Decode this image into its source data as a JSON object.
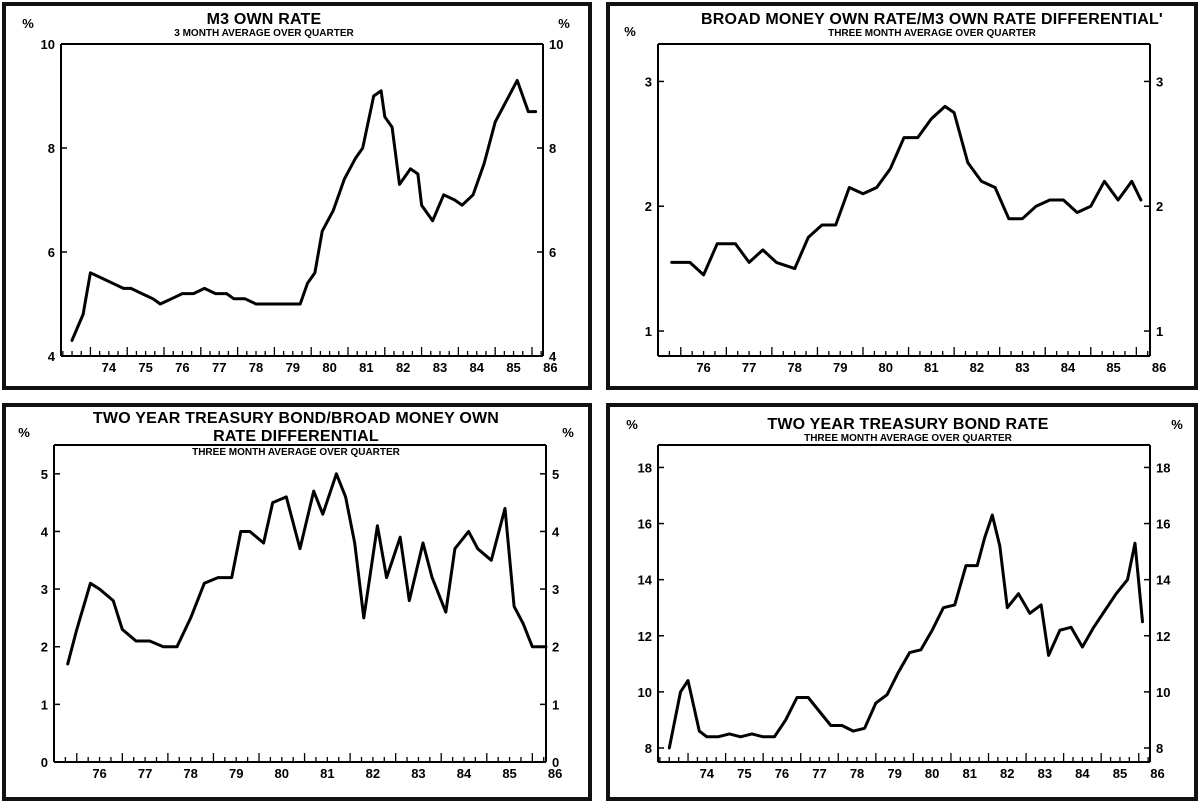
{
  "chart_data": [
    {
      "type": "line",
      "title": "M3 OWN RATE",
      "subtitle": "3 MONTH AVERAGE OVER QUARTER",
      "unit_left": "%",
      "unit_right": "%",
      "xlabel": "",
      "ylabel": "",
      "x_ticks": [
        "74",
        "75",
        "76",
        "77",
        "78",
        "79",
        "80",
        "81",
        "82",
        "83",
        "84",
        "85",
        "86"
      ],
      "ylim": [
        4,
        10
      ],
      "y_ticks": [
        "4",
        "6",
        "8",
        "10"
      ],
      "grid": false,
      "series": [
        {
          "x": [
            73.5,
            73.8,
            74.0,
            74.3,
            74.6,
            74.9,
            75.1,
            75.4,
            75.7,
            75.9,
            76.2,
            76.5,
            76.8,
            77.1,
            77.4,
            77.7,
            77.9,
            78.2,
            78.5,
            78.8,
            79.1,
            79.4,
            79.7,
            79.9,
            80.1,
            80.3,
            80.6,
            80.9,
            81.2,
            81.4,
            81.7,
            81.9,
            82.0,
            82.2,
            82.4,
            82.7,
            82.9,
            83.0,
            83.3,
            83.6,
            83.9,
            84.1,
            84.4,
            84.7,
            85.0,
            85.3,
            85.6,
            85.9,
            86.1
          ],
          "values": [
            4.3,
            4.8,
            5.6,
            5.5,
            5.4,
            5.3,
            5.3,
            5.2,
            5.1,
            5.0,
            5.1,
            5.2,
            5.2,
            5.3,
            5.2,
            5.2,
            5.1,
            5.1,
            5.0,
            5.0,
            5.0,
            5.0,
            5.0,
            5.4,
            5.6,
            6.4,
            6.8,
            7.4,
            7.8,
            8.0,
            9.0,
            9.1,
            8.6,
            8.4,
            7.3,
            7.6,
            7.5,
            6.9,
            6.6,
            7.1,
            7.0,
            6.9,
            7.1,
            7.7,
            8.5,
            8.9,
            9.3,
            8.7,
            8.7
          ]
        }
      ]
    },
    {
      "type": "line",
      "title": "BROAD MONEY OWN RATE/M3 OWN RATE DIFFERENTIAL'",
      "subtitle": "THREE MONTH AVERAGE OVER QUARTER",
      "unit_left": "%",
      "unit_right": "",
      "xlabel": "",
      "ylabel": "",
      "x_ticks": [
        "76",
        "77",
        "78",
        "79",
        "80",
        "81",
        "82",
        "83",
        "84",
        "85",
        "86"
      ],
      "ylim": [
        0.8,
        3.3
      ],
      "y_ticks": [
        "1",
        "2",
        "3"
      ],
      "grid": false,
      "series": [
        {
          "x": [
            75.8,
            76.2,
            76.5,
            76.8,
            77.2,
            77.5,
            77.8,
            78.1,
            78.5,
            78.8,
            79.1,
            79.4,
            79.7,
            80.0,
            80.3,
            80.6,
            80.9,
            81.2,
            81.5,
            81.8,
            82.0,
            82.3,
            82.6,
            82.9,
            83.2,
            83.5,
            83.8,
            84.1,
            84.4,
            84.7,
            85.0,
            85.3,
            85.6,
            85.9,
            86.1
          ],
          "values": [
            1.55,
            1.55,
            1.45,
            1.7,
            1.7,
            1.55,
            1.65,
            1.55,
            1.5,
            1.75,
            1.85,
            1.85,
            2.15,
            2.1,
            2.15,
            2.3,
            2.55,
            2.55,
            2.7,
            2.8,
            2.75,
            2.35,
            2.2,
            2.15,
            1.9,
            1.9,
            2.0,
            2.05,
            2.05,
            1.95,
            2.0,
            2.2,
            2.05,
            2.2,
            2.05
          ]
        }
      ]
    },
    {
      "type": "line",
      "title": "TWO YEAR TREASURY BOND/BROAD MONEY OWN RATE DIFFERENTIAL",
      "subtitle": "THREE MONTH AVERAGE OVER QUARTER",
      "unit_left": "%",
      "unit_right": "%",
      "xlabel": "",
      "ylabel": "",
      "x_ticks": [
        "76",
        "77",
        "78",
        "79",
        "80",
        "81",
        "82",
        "83",
        "84",
        "85",
        "86"
      ],
      "ylim": [
        0,
        5.5
      ],
      "y_ticks": [
        "0",
        "1",
        "2",
        "3",
        "4",
        "5"
      ],
      "grid": false,
      "series": [
        {
          "x": [
            75.8,
            76.0,
            76.3,
            76.5,
            76.8,
            77.0,
            77.3,
            77.6,
            77.9,
            78.2,
            78.5,
            78.8,
            79.1,
            79.4,
            79.6,
            79.8,
            80.1,
            80.3,
            80.6,
            80.9,
            81.2,
            81.4,
            81.7,
            81.9,
            82.1,
            82.3,
            82.6,
            82.8,
            83.1,
            83.3,
            83.6,
            83.8,
            84.1,
            84.3,
            84.6,
            84.8,
            85.1,
            85.4,
            85.6,
            85.8,
            86.0,
            86.3
          ],
          "values": [
            1.7,
            2.3,
            3.1,
            3.0,
            2.8,
            2.3,
            2.1,
            2.1,
            2.0,
            2.0,
            2.5,
            3.1,
            3.2,
            3.2,
            4.0,
            4.0,
            3.8,
            4.5,
            4.6,
            3.7,
            4.7,
            4.3,
            5.0,
            4.6,
            3.8,
            2.5,
            4.1,
            3.2,
            3.9,
            2.8,
            3.8,
            3.2,
            2.6,
            3.7,
            4.0,
            3.7,
            3.5,
            4.4,
            2.7,
            2.4,
            2.0,
            2.0
          ]
        }
      ]
    },
    {
      "type": "line",
      "title": "TWO YEAR TREASURY BOND RATE",
      "subtitle": "THREE MONTH AVERAGE OVER QUARTER",
      "unit_left": "%",
      "unit_right": "%",
      "xlabel": "",
      "ylabel": "",
      "x_ticks": [
        "74",
        "75",
        "76",
        "77",
        "78",
        "79",
        "80",
        "81",
        "82",
        "83",
        "84",
        "85",
        "86"
      ],
      "ylim": [
        7.5,
        18.8
      ],
      "y_ticks": [
        "8",
        "10",
        "12",
        "14",
        "16",
        "18"
      ],
      "grid": false,
      "series": [
        {
          "x": [
            73.5,
            73.8,
            74.0,
            74.3,
            74.5,
            74.8,
            75.1,
            75.4,
            75.7,
            76.0,
            76.3,
            76.6,
            76.9,
            77.2,
            77.5,
            77.8,
            78.1,
            78.4,
            78.7,
            79.0,
            79.3,
            79.6,
            79.9,
            80.2,
            80.5,
            80.8,
            81.1,
            81.4,
            81.7,
            81.9,
            82.1,
            82.3,
            82.5,
            82.8,
            83.1,
            83.4,
            83.6,
            83.9,
            84.2,
            84.5,
            84.8,
            85.1,
            85.4,
            85.7,
            85.9,
            86.1
          ],
          "values": [
            8.0,
            10.0,
            10.4,
            8.6,
            8.4,
            8.4,
            8.5,
            8.4,
            8.5,
            8.4,
            8.4,
            9.0,
            9.8,
            9.8,
            9.3,
            8.8,
            8.8,
            8.6,
            8.7,
            9.6,
            9.9,
            10.7,
            11.4,
            11.5,
            12.2,
            13.0,
            13.1,
            14.5,
            14.5,
            15.5,
            16.3,
            15.2,
            13.0,
            13.5,
            12.8,
            13.1,
            11.3,
            12.2,
            12.3,
            11.6,
            12.3,
            12.9,
            13.5,
            14.0,
            15.3,
            12.5
          ]
        }
      ]
    }
  ]
}
